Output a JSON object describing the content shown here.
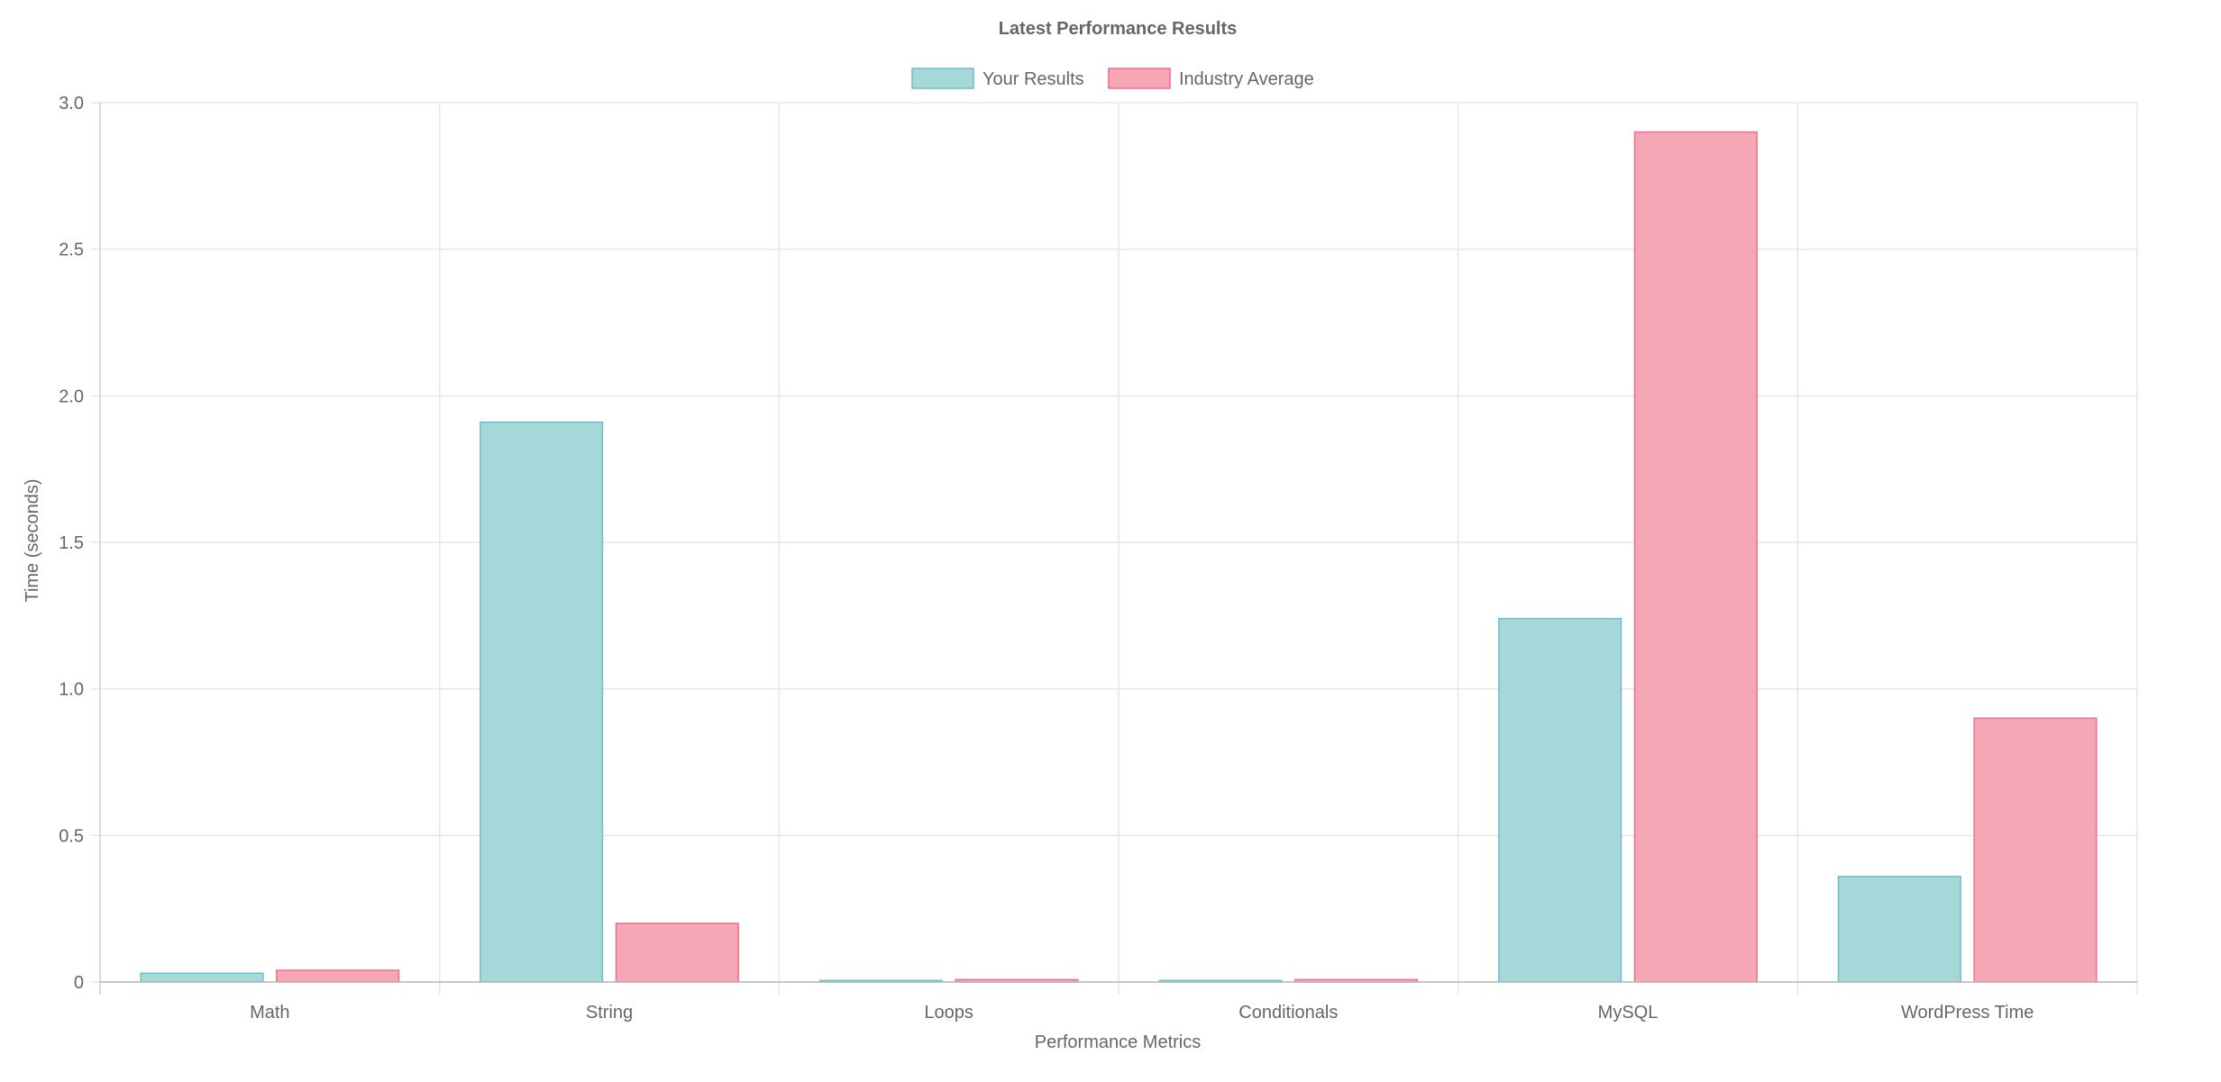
{
  "chart_data": {
    "type": "bar",
    "title": "Latest Performance Results",
    "xlabel": "Performance Metrics",
    "ylabel": "Time (seconds)",
    "categories": [
      "Math",
      "String",
      "Loops",
      "Conditionals",
      "MySQL",
      "WordPress Time"
    ],
    "series": [
      {
        "name": "Your Results",
        "values": [
          0.03,
          1.91,
          0.005,
          0.005,
          1.24,
          0.36
        ],
        "fill": "#a6d8d9",
        "stroke": "#6cbfc0"
      },
      {
        "name": "Industry Average",
        "values": [
          0.04,
          0.2,
          0.008,
          0.008,
          2.9,
          0.9
        ],
        "fill": "#f5a7b5",
        "stroke": "#ec6f8a"
      }
    ],
    "ylim": [
      0,
      3.0
    ],
    "yticks": [
      0,
      0.5,
      1.0,
      1.5,
      2.0,
      2.5,
      3.0
    ],
    "ytick_labels": [
      "0",
      "0.5",
      "1.0",
      "1.5",
      "2.0",
      "2.5",
      "3.0"
    ],
    "grid": true,
    "legend_position": "top-center"
  }
}
